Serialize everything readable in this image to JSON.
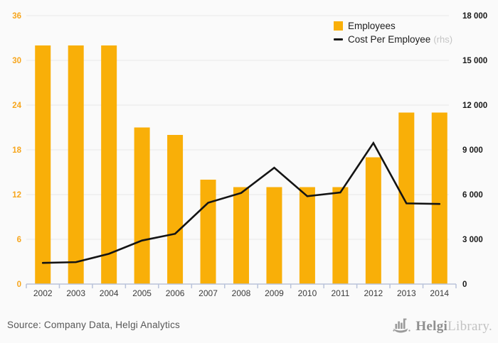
{
  "legend": {
    "employees": "Employees",
    "cost": "Cost Per Employee",
    "rhs": "(rhs)"
  },
  "footer": {
    "source": "Source: Company Data, Helgi Analytics",
    "logo_bold": "Helgi",
    "logo_light": "Library."
  },
  "colors": {
    "bar": "#f9af08",
    "line": "#141414",
    "grid": "#e8e8e8",
    "axis": "#b9c3da",
    "left_tick_text": "#f7a61d",
    "right_tick_text": "#1a1a1a",
    "x_tick_text": "#3b3b3b",
    "background": "#fafafa"
  },
  "chart_data": {
    "type": "bar",
    "title": "",
    "grid": true,
    "legend_position": "top-right",
    "categories": [
      "2002",
      "2003",
      "2004",
      "2005",
      "2006",
      "2007",
      "2008",
      "2009",
      "2010",
      "2011",
      "2012",
      "2013",
      "2014"
    ],
    "series": [
      {
        "name": "Employees",
        "kind": "bar",
        "axis": "left",
        "values": [
          32,
          32,
          32,
          21,
          20,
          14,
          13,
          13,
          13,
          13,
          17,
          23,
          23
        ]
      },
      {
        "name": "Cost Per Employee",
        "kind": "line",
        "axis": "right",
        "values": [
          1420,
          1470,
          2030,
          2920,
          3370,
          5450,
          6110,
          7800,
          5890,
          6140,
          9460,
          5410,
          5370
        ]
      }
    ],
    "left_axis": {
      "min": 0,
      "max": 36,
      "ticks": [
        {
          "v": 0,
          "label": "0"
        },
        {
          "v": 6,
          "label": "6"
        },
        {
          "v": 12,
          "label": "12"
        },
        {
          "v": 18,
          "label": "18"
        },
        {
          "v": 24,
          "label": "24"
        },
        {
          "v": 30,
          "label": "30"
        },
        {
          "v": 36,
          "label": "36"
        }
      ]
    },
    "right_axis": {
      "min": 0,
      "max": 18000,
      "ticks": [
        {
          "v": 0,
          "label": "0"
        },
        {
          "v": 3000,
          "label": "3 000"
        },
        {
          "v": 6000,
          "label": "6 000"
        },
        {
          "v": 9000,
          "label": "9 000"
        },
        {
          "v": 12000,
          "label": "12 000"
        },
        {
          "v": 15000,
          "label": "15 000"
        },
        {
          "v": 18000,
          "label": "18 000"
        }
      ]
    }
  }
}
